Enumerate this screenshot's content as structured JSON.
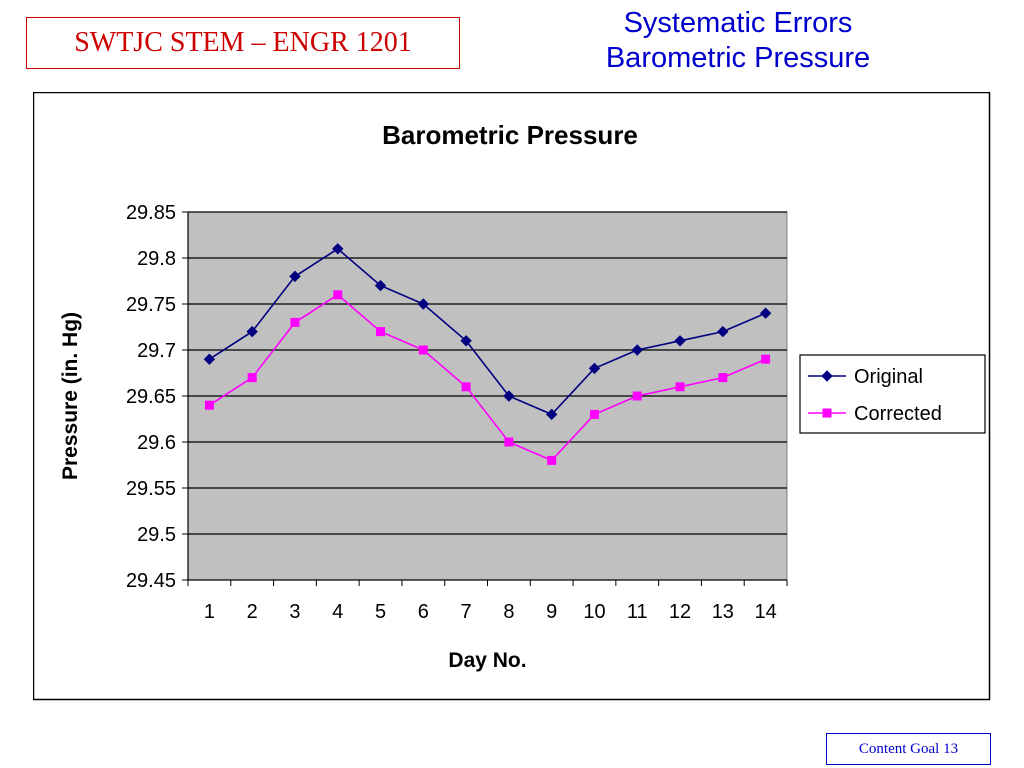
{
  "header": {
    "course_label": "SWTJC STEM – ENGR 1201",
    "title_line1": "Systematic Errors",
    "title_line2": "Barometric Pressure"
  },
  "footer": {
    "label": "Content Goal 13"
  },
  "colors": {
    "header_text": "#cc0000",
    "title_text": "#0000cc",
    "plot_background": "#c0c0c0",
    "original_series": "#000080",
    "corrected_series": "#ff00ff"
  },
  "chart_data": {
    "type": "line",
    "title": "Barometric Pressure",
    "xlabel": "Day No.",
    "ylabel": "Pressure (in. Hg)",
    "categories": [
      "1",
      "2",
      "3",
      "4",
      "5",
      "6",
      "7",
      "8",
      "9",
      "10",
      "11",
      "12",
      "13",
      "14"
    ],
    "ylim": [
      29.45,
      29.85
    ],
    "yticks": [
      "29.45",
      "29.5",
      "29.55",
      "29.6",
      "29.65",
      "29.7",
      "29.75",
      "29.8",
      "29.85"
    ],
    "grid": true,
    "legend_position": "right",
    "series": [
      {
        "name": "Original",
        "marker": "diamond",
        "color": "#000080",
        "values": [
          29.69,
          29.72,
          29.78,
          29.81,
          29.77,
          29.75,
          29.71,
          29.65,
          29.63,
          29.68,
          29.7,
          29.71,
          29.72,
          29.74
        ]
      },
      {
        "name": "Corrected",
        "marker": "square",
        "color": "#ff00ff",
        "values": [
          29.64,
          29.67,
          29.73,
          29.76,
          29.72,
          29.7,
          29.66,
          29.6,
          29.58,
          29.63,
          29.65,
          29.66,
          29.67,
          29.69
        ]
      }
    ]
  }
}
